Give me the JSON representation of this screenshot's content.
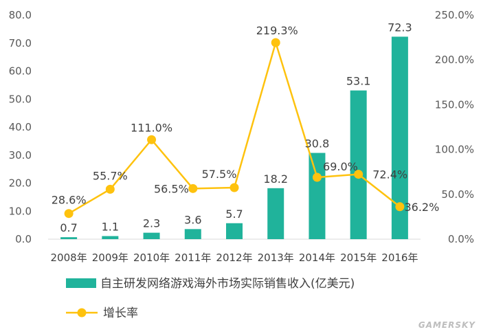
{
  "chart_data": {
    "type": "bar",
    "categories": [
      "2008年",
      "2009年",
      "2010年",
      "2011年",
      "2012年",
      "2013年",
      "2014年",
      "2015年",
      "2016年"
    ],
    "y_left_ticks": [
      "0.0",
      "10.0",
      "20.0",
      "30.0",
      "40.0",
      "50.0",
      "60.0",
      "70.0",
      "80.0"
    ],
    "y_right_ticks": [
      "0.0%",
      "50.0%",
      "100.0%",
      "150.0%",
      "200.0%",
      "250.0%"
    ],
    "ylim_left": [
      0,
      80
    ],
    "ylim_right": [
      0,
      250
    ],
    "series": [
      {
        "name": "自主研发网络游戏海外市场实际销售收入(亿美元)",
        "type": "bar",
        "axis": "left",
        "color": "#20b39b",
        "values": [
          0.7,
          1.1,
          2.3,
          3.6,
          5.7,
          18.2,
          30.8,
          53.1,
          72.3
        ],
        "labels": [
          "0.7",
          "1.1",
          "2.3",
          "3.6",
          "5.7",
          "18.2",
          "30.8",
          "53.1",
          "72.3"
        ]
      },
      {
        "name": "增长率",
        "type": "line",
        "axis": "right",
        "color": "#fec20e",
        "values": [
          28.6,
          55.7,
          111.0,
          56.5,
          57.5,
          219.3,
          69.0,
          72.4,
          36.2
        ],
        "labels": [
          "28.6%",
          "55.7%",
          "111.0%",
          "56.5%",
          "57.5%",
          "219.3%",
          "69.0%",
          "72.4%",
          "36.2%"
        ]
      }
    ],
    "grid": false,
    "legend_position": "bottom"
  },
  "watermark": "GAMERSKY"
}
